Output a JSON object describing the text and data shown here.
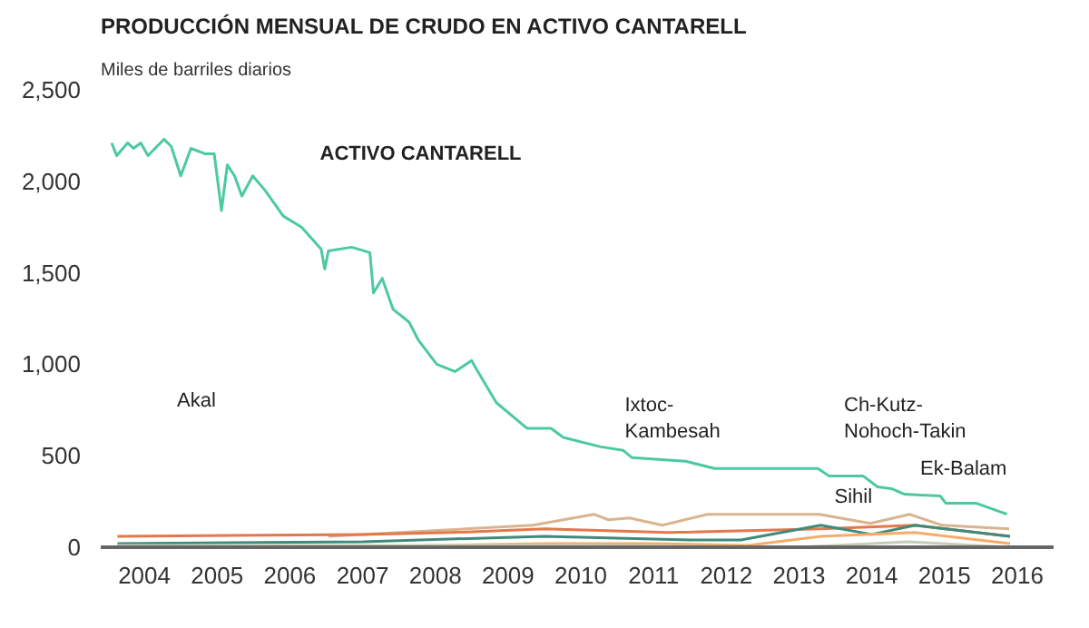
{
  "chart_data": {
    "type": "line",
    "title": "PRODUCCIÓN MENSUAL DE CRUDO EN ACTIVO CANTARELL",
    "subtitle": "Miles de barriles diarios",
    "xlim": [
      2003.4,
      2016.5
    ],
    "ylim": [
      0,
      2500
    ],
    "xticks": [
      {
        "value": 2004,
        "label": "2004"
      },
      {
        "value": 2005,
        "label": "2005"
      },
      {
        "value": 2006,
        "label": "2006"
      },
      {
        "value": 2007,
        "label": "2007"
      },
      {
        "value": 2008,
        "label": "2008"
      },
      {
        "value": 2009,
        "label": "2009"
      },
      {
        "value": 2010,
        "label": "2010"
      },
      {
        "value": 2011,
        "label": "2011"
      },
      {
        "value": 2012,
        "label": "2012"
      },
      {
        "value": 2013,
        "label": "2013"
      },
      {
        "value": 2014,
        "label": "2014"
      },
      {
        "value": 2015,
        "label": "2015"
      },
      {
        "value": 2016,
        "label": "2016"
      }
    ],
    "yticks": [
      0,
      {
        "value": 500,
        "label": "500"
      },
      {
        "value": 1000,
        "label": "1,000"
      },
      {
        "value": 1500,
        "label": "1,500"
      },
      {
        "value": 2000,
        "label": "2,000"
      },
      {
        "value": 2500,
        "label": "2,500"
      }
    ],
    "grid": false,
    "marker": "none",
    "line_style": "solid",
    "series": [
      {
        "color": "#4cc9a3",
        "x": [
          2003.55,
          2003.62,
          2003.77,
          2003.85,
          2003.95,
          2004.05,
          2004.27,
          2004.37,
          2004.5,
          2004.64,
          2004.84,
          2004.96,
          2005.06,
          2005.14,
          2005.24,
          2005.34,
          2005.49,
          2005.66,
          2005.91,
          2006.16,
          2006.43,
          2006.48,
          2006.53,
          2006.85,
          2007.1,
          2007.15,
          2007.27,
          2007.42,
          2007.64,
          2007.77,
          2008.02,
          2008.27,
          2008.5,
          2008.57,
          2008.84,
          2009.26,
          2009.59,
          2009.76,
          2010.26,
          2010.58,
          2010.7,
          2011.44,
          2011.84,
          2013.26,
          2013.41,
          2013.88,
          2014.08,
          2014.27,
          2014.45,
          2014.94,
          2015.02,
          2015.44,
          2015.86
        ],
        "values": [
          2210,
          2140,
          2210,
          2180,
          2210,
          2140,
          2230,
          2190,
          2030,
          2180,
          2150,
          2150,
          1840,
          2090,
          2030,
          1920,
          2030,
          1950,
          1810,
          1750,
          1630,
          1520,
          1620,
          1640,
          1610,
          1390,
          1470,
          1300,
          1230,
          1130,
          1000,
          960,
          1020,
          970,
          790,
          650,
          650,
          600,
          550,
          530,
          490,
          470,
          430,
          430,
          390,
          390,
          330,
          320,
          290,
          280,
          240,
          240,
          180
        ]
      },
      {
        "color": "#d9b48e",
        "x": [
          2006.53,
          2009.34,
          2010.18,
          2010.38,
          2010.67,
          2011.12,
          2011.74,
          2013.28,
          2013.98,
          2014.52,
          2014.97,
          2015.89
        ],
        "values": [
          60,
          120,
          180,
          150,
          160,
          120,
          180,
          180,
          130,
          180,
          120,
          100
        ]
      },
      {
        "color": "#e3784a",
        "x": [
          2003.63,
          2007.0,
          2008.2,
          2009.5,
          2011.2,
          2013.3,
          2014.6,
          2015.9
        ],
        "values": [
          60,
          70,
          80,
          100,
          80,
          100,
          120,
          60
        ]
      },
      {
        "color": "#3f8a7a",
        "x": [
          2003.63,
          2007.0,
          2009.5,
          2011.5,
          2012.2,
          2013.3,
          2014.0,
          2014.6,
          2015.9
        ],
        "values": [
          20,
          30,
          60,
          40,
          40,
          120,
          70,
          120,
          60
        ]
      },
      {
        "color": "#f5ac68",
        "x": [
          2006.85,
          2008.0,
          2009.5,
          2011.0,
          2012.3,
          2013.3,
          2014.6,
          2015.9
        ],
        "values": [
          0,
          10,
          20,
          20,
          10,
          60,
          80,
          20
        ]
      },
      {
        "color": "#c5cdbb",
        "x": [
          2003.63,
          2010.0,
          2013.0,
          2014.5,
          2015.9
        ],
        "values": [
          10,
          10,
          0,
          30,
          0
        ]
      }
    ],
    "annotations": [
      "ACTIVO CANTARELL",
      "Akal",
      "Ixtoc-\nKambesah",
      "Ch-Kutz-\nNohoch-Takin",
      "Ek-Balam",
      "Sihil"
    ]
  }
}
